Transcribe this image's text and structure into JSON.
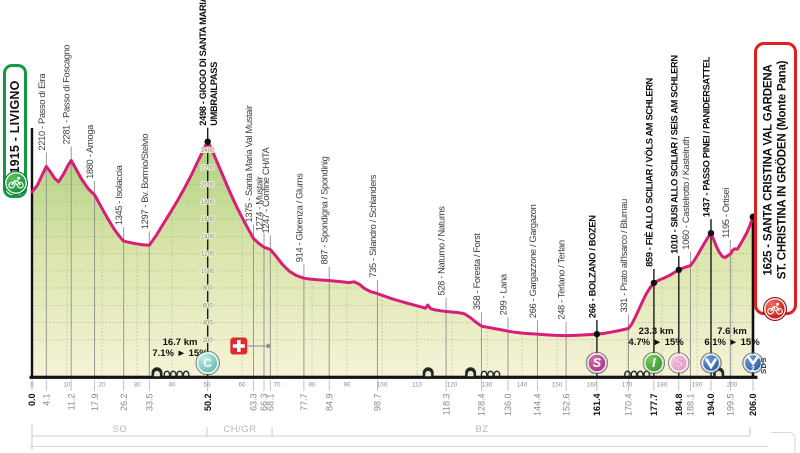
{
  "race": {
    "start_box": {
      "label": "1915 - LIVIGNO"
    },
    "finish_box": {
      "line1": "1625 - SANTA CRISTINA VAL GARDENA",
      "line2": "ST. CHRISTINA IN GRÖDEN (Monte Pana)"
    },
    "finish_side_label": "SDS"
  },
  "colors": {
    "profile_line": "#d81e78",
    "fill_top": "#a9cf7c",
    "fill_mid": "#dbe5ac",
    "fill_bottom": "#f6f3d8",
    "grid": "#98a37b",
    "start_green": "#119a46",
    "finish_red": "#e01f1f",
    "swiss_red": "#dd2c2c"
  },
  "chart_data": {
    "type": "area",
    "x_range": [
      0,
      206
    ],
    "y_range": [
      0,
      2600
    ],
    "x_ticks": [
      0,
      10,
      20,
      30,
      40,
      50,
      60,
      70,
      80,
      90,
      100,
      110,
      120,
      130,
      140,
      150,
      160,
      170,
      180,
      190,
      200
    ],
    "elevation_scale": {
      "at_km": 50.2,
      "values": [
        200,
        400,
        600,
        800,
        1000,
        1200,
        1400,
        1600,
        1800,
        2000,
        2200,
        2400
      ]
    },
    "start": {
      "km": 0,
      "elev": 1915,
      "km_label": "0.0"
    },
    "finish": {
      "km": 206,
      "elev": 1625,
      "km_label": "206.0"
    },
    "waypoints": [
      {
        "km": 4.1,
        "km_label": "4.1",
        "elev": 2210,
        "label": "2210 - Passo di Eira"
      },
      {
        "km": 11.2,
        "km_label": "11.2",
        "elev": 2281,
        "label": "2281 - Passo di Foscagno"
      },
      {
        "km": 17.9,
        "km_label": "17.9",
        "elev": 1880,
        "label": "1880 - Arnoga"
      },
      {
        "km": 26.2,
        "km_label": "26.2",
        "elev": 1345,
        "label": "1345 - Isolaccia"
      },
      {
        "km": 33.5,
        "km_label": "33.5",
        "elev": 1297,
        "label": "1297 - Bv. Bormio/Stelvio"
      },
      {
        "km": 50.2,
        "km_label": "50.2",
        "elev": 2498,
        "lines": [
          "2498 - GIOGO DI SANTA MARIA",
          "UMBRAILPASS"
        ],
        "bold": true,
        "dot": true
      },
      {
        "km": 63.3,
        "km_label": "63.3",
        "elev": 1375,
        "label": "1375 - Santa Maria Val Mustair"
      },
      {
        "km": 66.3,
        "km_label": "66.3",
        "elev": 1274,
        "label": "1274 - Mustair"
      },
      {
        "km": 68.1,
        "km_label": "68.1",
        "elev": 1247,
        "label": "1247 - Confine CH/ITA"
      },
      {
        "km": 77.7,
        "km_label": "77.7",
        "elev": 914,
        "label": "914 - Glorenza / Glurns"
      },
      {
        "km": 84.9,
        "km_label": "84.9",
        "elev": 887,
        "label": "887 - Spondigna / Spondinig"
      },
      {
        "km": 98.7,
        "km_label": "98.7",
        "elev": 735,
        "label": "735 - Silandro / Schlanders"
      },
      {
        "km": 118.3,
        "km_label": "118.3",
        "elev": 528,
        "label": "528 - Naturno / Naturns"
      },
      {
        "km": 128.4,
        "km_label": "128.4",
        "elev": 358,
        "label": "358 - Foresta / Forst"
      },
      {
        "km": 136.0,
        "km_label": "136.0",
        "elev": 299,
        "label": "299 - Lana"
      },
      {
        "km": 144.4,
        "km_label": "144.4",
        "elev": 266,
        "label": "266 - Gargazzone / Gargazon"
      },
      {
        "km": 152.6,
        "km_label": "152.6",
        "elev": 248,
        "label": "248 - Terlano / Terlan"
      },
      {
        "km": 161.4,
        "km_label": "161.4",
        "elev": 266,
        "label": "266 - BOLZANO / BOZEN",
        "bold": true,
        "dot": true
      },
      {
        "km": 170.4,
        "km_label": "170.4",
        "elev": 331,
        "label": "331 - Prato all'Isarco / Blumau"
      },
      {
        "km": 177.7,
        "km_label": "177.7",
        "elev": 859,
        "label": "859 - FIÈ ALLO SCILIAR / VÖLS AM SCHLERN",
        "bold": true,
        "dot": true
      },
      {
        "km": 184.8,
        "km_label": "184.8",
        "elev": 1010,
        "label": "1010 - SIUSI ALLO SCILIAR / SEIS AM SCHLERN",
        "bold": true,
        "dot": true
      },
      {
        "km": 188.1,
        "km_label": "188.1",
        "elev": 1060,
        "label": "1060 - Castelrotto / Kastelruth"
      },
      {
        "km": 194.0,
        "km_label": "194.0",
        "elev": 1437,
        "label": "1437 - PASSO PINEI / PANIDERSATTEL",
        "bold": true,
        "dot": true
      },
      {
        "km": 199.5,
        "km_label": "199.5",
        "elev": 1195,
        "label": "1195 - Ortisei"
      }
    ],
    "bold_distance_labels": [
      "0.0",
      "50.2",
      "161.4",
      "177.7",
      "184.8",
      "194.0",
      "206.0"
    ],
    "climbs": [
      {
        "length": "16.7 km",
        "gradient": "7.1% ► 15%",
        "center_km": 42.3,
        "y": 345
      },
      {
        "length": "23.3 km",
        "gradient": "4.7% ► 15%",
        "center_km": 178.3,
        "y": 334
      },
      {
        "length": "7.6 km",
        "gradient": "6.1% ► 15%",
        "center_km": 200.0,
        "y": 334
      }
    ],
    "badges": [
      {
        "km": 50.2,
        "glyph": "C",
        "kind": "cima-coppi",
        "fill": [
          "#c2efe9",
          "#49b0a6"
        ],
        "r": 11
      },
      {
        "km": 161.4,
        "glyph": "S",
        "kind": "sprint",
        "fill": [
          "#d46aad",
          "#9c2f7a"
        ],
        "r": 10,
        "serif": true
      },
      {
        "km": 177.7,
        "glyph": "I",
        "kind": "intergiro",
        "fill": [
          "#7cc857",
          "#2f8c33"
        ],
        "r": 10,
        "serif": true
      },
      {
        "km": 184.8,
        "glyph": "S",
        "kind": "sprint-2",
        "fill": [
          "#f6c6dd",
          "#e392bd"
        ],
        "r": 9.5,
        "serif": true,
        "glyph_stroke": "#cf7fa9"
      },
      {
        "km": 194.0,
        "glyph": "V",
        "kind": "gpm",
        "fill": [
          "#6d9bd8",
          "#1c4f9c"
        ],
        "r": 9.5,
        "chevron": true
      },
      {
        "km": 206.0,
        "glyph": "V",
        "sub": "2",
        "kind": "gpm-finish",
        "fill": [
          "#6d9bd8",
          "#1c4f9c"
        ],
        "r": 9.5,
        "chevron": true
      }
    ],
    "provinces": {
      "segments": [
        {
          "label": "SO",
          "center_km": 25.1
        },
        {
          "label": "CH/GR",
          "center_km": 59.4
        },
        {
          "label": "BZ",
          "center_km": 128.6
        }
      ],
      "boundary_ticks_km": [
        0,
        50,
        68.6,
        205.1
      ]
    },
    "swiss_flag": {
      "km": 59.1,
      "line_end_km": 67.1
    },
    "road_icons": {
      "tunnels_km": [
        35.7,
        113.2,
        125.3,
        196.2
      ],
      "galleries": [
        {
          "km": 41.3,
          "arches": 4
        },
        {
          "km": 131.0,
          "arches": 3
        },
        {
          "km": 172.9,
          "arches": 4
        }
      ]
    },
    "elevation_profile": [
      [
        0,
        1915
      ],
      [
        1.5,
        1990
      ],
      [
        3,
        2120
      ],
      [
        4.1,
        2210
      ],
      [
        5.2,
        2150
      ],
      [
        6.5,
        2070
      ],
      [
        7.6,
        2032
      ],
      [
        9,
        2120
      ],
      [
        10.3,
        2225
      ],
      [
        11.2,
        2281
      ],
      [
        12.5,
        2185
      ],
      [
        14,
        2075
      ],
      [
        16,
        1955
      ],
      [
        17.9,
        1880
      ],
      [
        19.5,
        1760
      ],
      [
        21.5,
        1615
      ],
      [
        23.5,
        1480
      ],
      [
        25.3,
        1385
      ],
      [
        26.2,
        1345
      ],
      [
        27.5,
        1332
      ],
      [
        29.5,
        1315
      ],
      [
        31.5,
        1303
      ],
      [
        33.5,
        1297
      ],
      [
        35.5,
        1410
      ],
      [
        37.5,
        1545
      ],
      [
        39.5,
        1675
      ],
      [
        41.5,
        1810
      ],
      [
        43.5,
        1955
      ],
      [
        45.5,
        2110
      ],
      [
        47.2,
        2255
      ],
      [
        48.6,
        2370
      ],
      [
        49.6,
        2455
      ],
      [
        50.2,
        2498
      ],
      [
        51.2,
        2420
      ],
      [
        52.8,
        2270
      ],
      [
        54.5,
        2105
      ],
      [
        56.5,
        1915
      ],
      [
        58.5,
        1740
      ],
      [
        60.5,
        1580
      ],
      [
        62,
        1470
      ],
      [
        63.3,
        1375
      ],
      [
        64.8,
        1318
      ],
      [
        66.3,
        1274
      ],
      [
        68.1,
        1247
      ],
      [
        69.5,
        1180
      ],
      [
        71.5,
        1075
      ],
      [
        73.5,
        995
      ],
      [
        75.5,
        945
      ],
      [
        77.7,
        914
      ],
      [
        79.5,
        904
      ],
      [
        81.5,
        895
      ],
      [
        83.5,
        890
      ],
      [
        84.9,
        887
      ],
      [
        86.5,
        880
      ],
      [
        88.5,
        872
      ],
      [
        90.5,
        863
      ],
      [
        92,
        872
      ],
      [
        93.5,
        845
      ],
      [
        95,
        795
      ],
      [
        96.8,
        758
      ],
      [
        98.7,
        735
      ],
      [
        101,
        702
      ],
      [
        103,
        674
      ],
      [
        105,
        650
      ],
      [
        107,
        626
      ],
      [
        109,
        604
      ],
      [
        111,
        584
      ],
      [
        112.4,
        566
      ],
      [
        113.1,
        602
      ],
      [
        113.9,
        560
      ],
      [
        115.2,
        546
      ],
      [
        116.8,
        536
      ],
      [
        118.3,
        528
      ],
      [
        120,
        522
      ],
      [
        122,
        514
      ],
      [
        123.6,
        500
      ],
      [
        125.2,
        458
      ],
      [
        126.8,
        406
      ],
      [
        128.4,
        358
      ],
      [
        130.2,
        344
      ],
      [
        132.2,
        329
      ],
      [
        134.2,
        314
      ],
      [
        136,
        299
      ],
      [
        138,
        287
      ],
      [
        140.2,
        277
      ],
      [
        142.4,
        270
      ],
      [
        144.4,
        266
      ],
      [
        146.6,
        259
      ],
      [
        149,
        252
      ],
      [
        151,
        249
      ],
      [
        152.6,
        248
      ],
      [
        155,
        251
      ],
      [
        157.2,
        255
      ],
      [
        159.3,
        260
      ],
      [
        161.4,
        266
      ],
      [
        163.2,
        273
      ],
      [
        165.2,
        286
      ],
      [
        167.2,
        302
      ],
      [
        169,
        318
      ],
      [
        170.4,
        331
      ],
      [
        171.4,
        385
      ],
      [
        172.4,
        465
      ],
      [
        173.4,
        552
      ],
      [
        174.4,
        642
      ],
      [
        175.4,
        725
      ],
      [
        176.5,
        798
      ],
      [
        177.7,
        859
      ],
      [
        179.2,
        893
      ],
      [
        180.7,
        918
      ],
      [
        182.2,
        948
      ],
      [
        183.5,
        980
      ],
      [
        184.8,
        1010
      ],
      [
        186,
        1032
      ],
      [
        187.1,
        1047
      ],
      [
        188.1,
        1060
      ],
      [
        189,
        1108
      ],
      [
        190,
        1172
      ],
      [
        191,
        1242
      ],
      [
        192,
        1312
      ],
      [
        193,
        1380
      ],
      [
        194,
        1437
      ],
      [
        194.8,
        1358
      ],
      [
        195.6,
        1278
      ],
      [
        196.4,
        1213
      ],
      [
        197.2,
        1168
      ],
      [
        198,
        1153
      ],
      [
        198.8,
        1176
      ],
      [
        199.5,
        1195
      ],
      [
        200.2,
        1238
      ],
      [
        200.8,
        1256
      ],
      [
        201.5,
        1250
      ],
      [
        202.3,
        1302
      ],
      [
        203.2,
        1365
      ],
      [
        204.2,
        1438
      ],
      [
        205.1,
        1525
      ],
      [
        206,
        1625
      ]
    ]
  }
}
